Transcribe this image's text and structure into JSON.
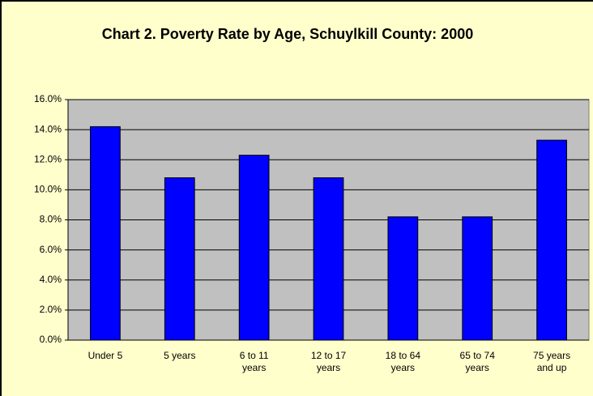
{
  "chart_data": {
    "type": "bar",
    "title": "Chart 2. Poverty Rate by Age, Schuylkill County: 2000",
    "categories": [
      "Under 5",
      "5 years",
      "6 to 11 years",
      "12 to 17 years",
      "18 to 64 years",
      "65 to 74 years",
      "75 years and up"
    ],
    "values": [
      14.2,
      10.8,
      12.3,
      10.8,
      8.2,
      8.2,
      13.3
    ],
    "color": "#0000ff",
    "ylim": [
      0,
      16
    ],
    "yticks": [
      {
        "value": 0,
        "label": "0.0%"
      },
      {
        "value": 2,
        "label": "2.0%"
      },
      {
        "value": 4,
        "label": "4.0%"
      },
      {
        "value": 6,
        "label": "6.0%"
      },
      {
        "value": 8,
        "label": "8.0%"
      },
      {
        "value": 10,
        "label": "10.0%"
      },
      {
        "value": 12,
        "label": "12.0%"
      },
      {
        "value": 14,
        "label": "14.0%"
      },
      {
        "value": 16,
        "label": "16.0%"
      }
    ],
    "grid": true
  }
}
